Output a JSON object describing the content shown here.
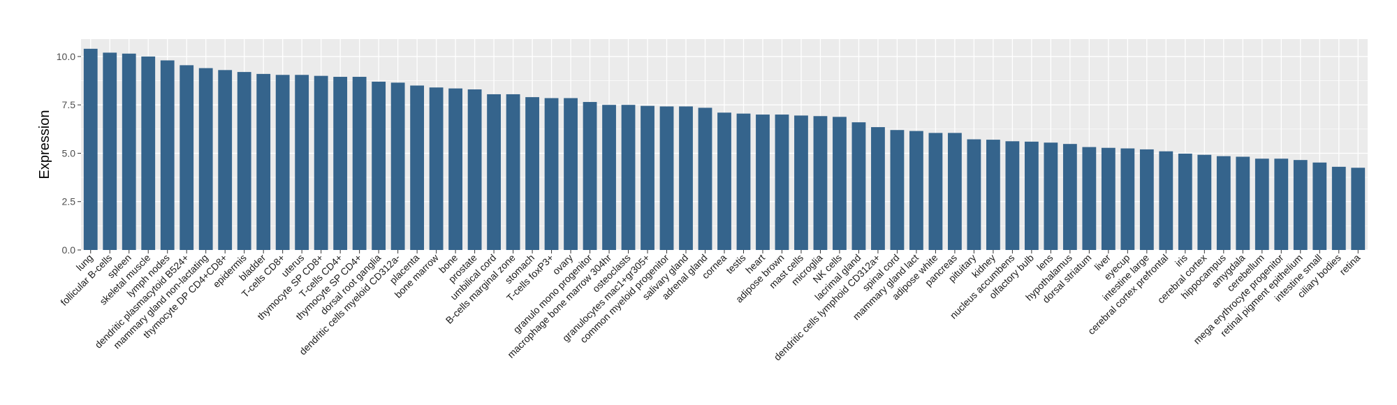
{
  "chart_data": {
    "type": "bar",
    "ylabel": "Expression",
    "xlabel": "",
    "ylim": [
      0,
      10.9
    ],
    "yticks": [
      0,
      2.5,
      5,
      7.5,
      10
    ],
    "ytick_labels": [
      "0.0",
      "2.5",
      "5.0",
      "7.5",
      "10.0"
    ],
    "grid": true,
    "bar_color": "#35648c",
    "panel_color": "#ebebeb",
    "grid_color": "#ffffff",
    "categories": [
      "lung",
      "follicular B-cells",
      "spleen",
      "skeletal muscle",
      "lymph nodes",
      "dendritic plasmacytoid B524+",
      "mammary gland non-lactating",
      "thymocyte DP CD4+CD8+",
      "epidermis",
      "bladder",
      "T-cells CD8+",
      "uterus",
      "thymocyte SP CD8+",
      "T-cells CD4+",
      "thymocyte SP CD4+",
      "dorsal root ganglia",
      "dendritic cells myeloid CD312a-",
      "placenta",
      "bone marrow",
      "bone",
      "prostate",
      "umbilical cord",
      "B-cells marginal zone",
      "stomach",
      "T-cells foxP3+",
      "ovary",
      "granulo mono progenitor",
      "macrophage bone marrow 304hr",
      "osteoclasts",
      "granulocytes mac1+gr305+",
      "common myeloid progenitor",
      "salivary gland",
      "adrenal gland",
      "cornea",
      "testis",
      "heart",
      "adipose brown",
      "mast cells",
      "microglia",
      "NK cells",
      "lacrimal gland",
      "dendritic cells lymphoid CD312a+",
      "spinal cord",
      "mammary gland  lact",
      "adipose white",
      "pancreas",
      "pituitary",
      "kidney",
      "nucleus accumbens",
      "olfactory bulb",
      "lens",
      "hypothalamus",
      "dorsal striatum",
      "liver",
      "eyecup",
      "intestine large",
      "cerebral cortex prefrontal",
      "iris",
      "cerebral cortex",
      "hippocampus",
      "amygdala",
      "cerebellum",
      "mega erythrocyte progenitor",
      "retinal pigment epithelium",
      "intestine small",
      "ciliary bodies",
      "retina"
    ],
    "values": [
      10.4,
      10.2,
      10.15,
      10.0,
      9.8,
      9.55,
      9.4,
      9.3,
      9.2,
      9.1,
      9.05,
      9.05,
      9.0,
      8.95,
      8.95,
      8.7,
      8.65,
      8.5,
      8.4,
      8.35,
      8.3,
      8.05,
      8.05,
      7.9,
      7.85,
      7.85,
      7.65,
      7.5,
      7.5,
      7.45,
      7.42,
      7.42,
      7.35,
      7.1,
      7.05,
      7.0,
      7.0,
      6.95,
      6.92,
      6.88,
      6.6,
      6.35,
      6.2,
      6.15,
      6.05,
      6.05,
      5.72,
      5.7,
      5.62,
      5.6,
      5.55,
      5.48,
      5.32,
      5.28,
      5.25,
      5.2,
      5.1,
      4.98,
      4.92,
      4.85,
      4.82,
      4.72,
      4.72,
      4.65,
      4.52,
      4.3,
      4.25
    ]
  }
}
